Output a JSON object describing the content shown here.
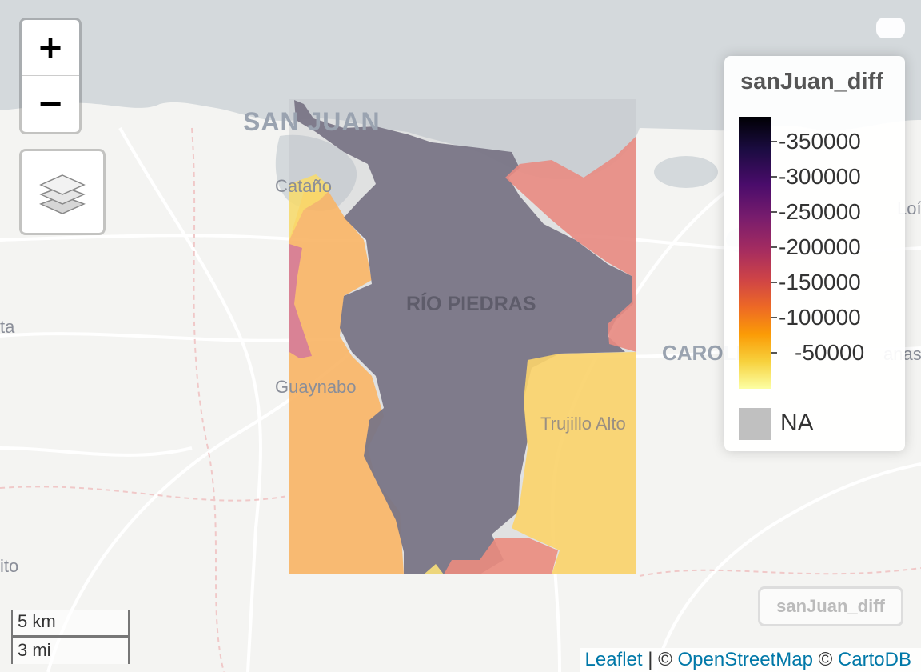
{
  "map": {
    "place_labels": [
      "SAN JUAN",
      "Cataño",
      "RÍO PIEDRAS",
      "CAROLINA",
      "Guaynabo",
      "Trujillo Alto",
      "Loíza",
      "ta",
      "ito",
      "anas"
    ],
    "colors": {
      "water": "#d4d9dc",
      "land": "#f4f4f2",
      "road": "#ffffff",
      "dark_region": "#797586",
      "orange_region": "#fbb35e",
      "yellow_region": "#f9d46a",
      "red_region": "#e98b82",
      "pink_region": "#d3789b",
      "coverage_box": "#b9bcc3"
    }
  },
  "controls": {
    "zoom_in": "+",
    "zoom_out": "−",
    "layers_icon": "layers-icon"
  },
  "legend": {
    "title": "sanJuan_diff",
    "labels": [
      "-350000",
      "-300000",
      "-250000",
      "-200000",
      "-150000",
      "-100000",
      "-50000"
    ],
    "na_label": "NA",
    "palette": "inferno"
  },
  "scale": {
    "km": "5 km",
    "mi": "3 mi"
  },
  "layer_toggle": "sanJuan_diff",
  "attribution": {
    "leaflet": "Leaflet",
    "sep1": " | © ",
    "osm": "OpenStreetMap",
    "sep2": " © ",
    "carto": "CartoDB"
  }
}
